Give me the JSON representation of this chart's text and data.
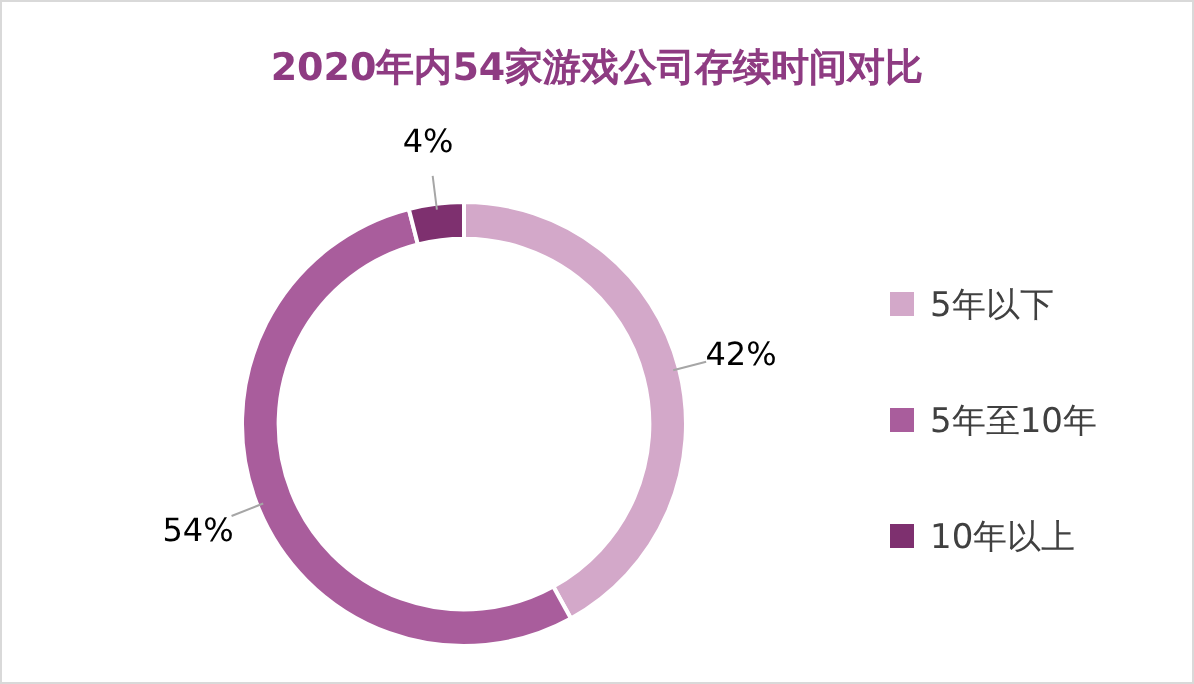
{
  "chart_data": {
    "type": "donut",
    "title": "2020年内54家游戏公司存续时间对比",
    "categories": [
      "5年以下",
      "5年至10年",
      "10年以上"
    ],
    "values": [
      42,
      54,
      4
    ],
    "colors": [
      "#d3a8c9",
      "#a95d9c",
      "#7e306f"
    ],
    "value_labels": [
      "42%",
      "54%",
      "4%"
    ],
    "legend": "right"
  }
}
